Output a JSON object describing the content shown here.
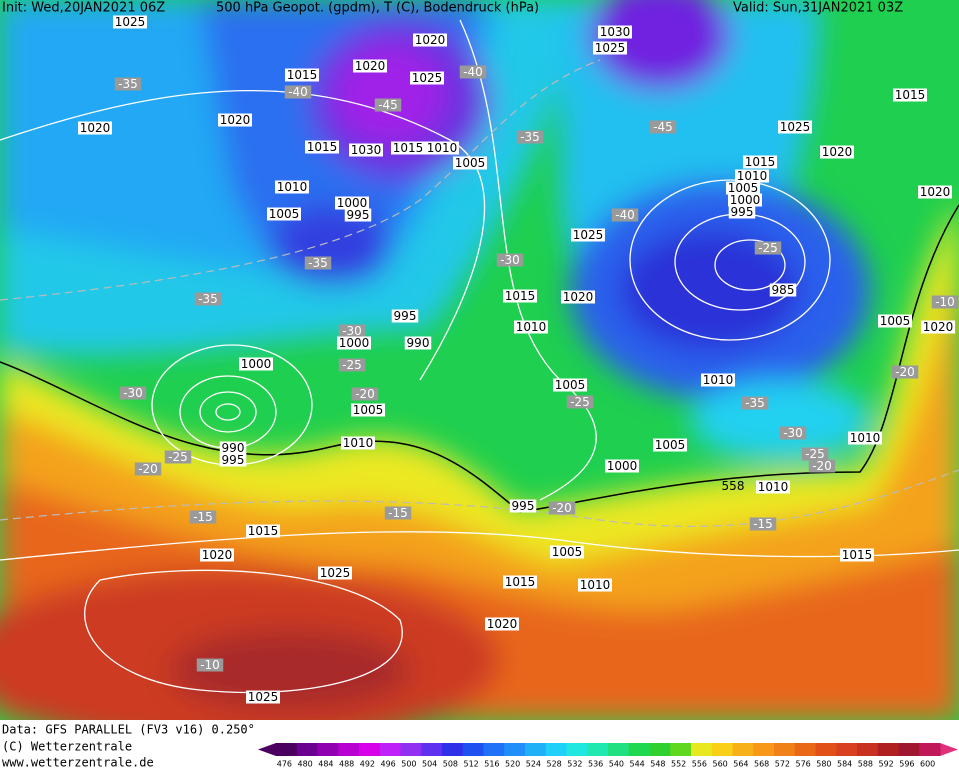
{
  "header": {
    "init": "Init: Wed,20JAN2021 06Z",
    "title": "500 hPa Geopot. (gpdm), T (C), Bodendruck (hPa)",
    "valid": "Valid: Sun,31JAN2021 03Z"
  },
  "footer": {
    "source": "Data: GFS PARALLEL (FV3 v16) 0.250°",
    "copyright": "(C) Wetterzentrale",
    "url": "www.wetterzentrale.de"
  },
  "legend": {
    "ticks": [
      476,
      480,
      484,
      488,
      492,
      496,
      500,
      504,
      508,
      512,
      516,
      520,
      524,
      528,
      532,
      536,
      540,
      544,
      548,
      552,
      556,
      560,
      564,
      568,
      572,
      576,
      580,
      584,
      588,
      592,
      596,
      600
    ],
    "colors": [
      "#4b0060",
      "#6a0090",
      "#9000b0",
      "#b800d0",
      "#d800e8",
      "#c020f8",
      "#9030f0",
      "#6030f0",
      "#3030e8",
      "#2050f0",
      "#2070f8",
      "#2090f8",
      "#20b0f8",
      "#20d0f8",
      "#20e8e0",
      "#20e8b0",
      "#20e080",
      "#20d850",
      "#30d030",
      "#60d820",
      "#e8e820",
      "#f8d018",
      "#f8b018",
      "#f89818",
      "#f08018",
      "#e86818",
      "#e05018",
      "#d84020",
      "#c83020",
      "#b02020",
      "#a01830",
      "#c01858"
    ]
  },
  "map": {
    "labels": [
      "1025",
      "1020",
      "1030",
      "1025",
      "1015",
      "1020",
      "1025",
      "-40",
      "-35",
      "-40",
      "-45",
      "1015",
      "1020",
      "1020",
      "-45",
      "1025",
      "-35",
      "1015",
      "1030",
      "1015",
      "1010",
      "1005",
      "1020",
      "1015",
      "1010",
      "1005",
      "1000",
      "995",
      "1010",
      "1020",
      "1000",
      "995",
      "1005",
      "-40",
      "1025",
      "-35",
      "-30",
      "-25",
      "985",
      "1015",
      "1020",
      "-35",
      "-10",
      "995",
      "1005",
      "1020",
      "1010",
      "-30",
      "1000",
      "990",
      "1000",
      "-25",
      "-20",
      "1010",
      "1005",
      "-30",
      "-20",
      "-25",
      "1005",
      "-35",
      "-30",
      "1010",
      "1010",
      "1005",
      "990",
      "995",
      "-25",
      "-25",
      "-20",
      "1000",
      "-20",
      "558",
      "1010",
      "995",
      "-20",
      "-15",
      "-15",
      "-15",
      "1015",
      "1005",
      "1015",
      "1020",
      "1025",
      "1015",
      "1010",
      "1020",
      "-10",
      "1025"
    ]
  }
}
